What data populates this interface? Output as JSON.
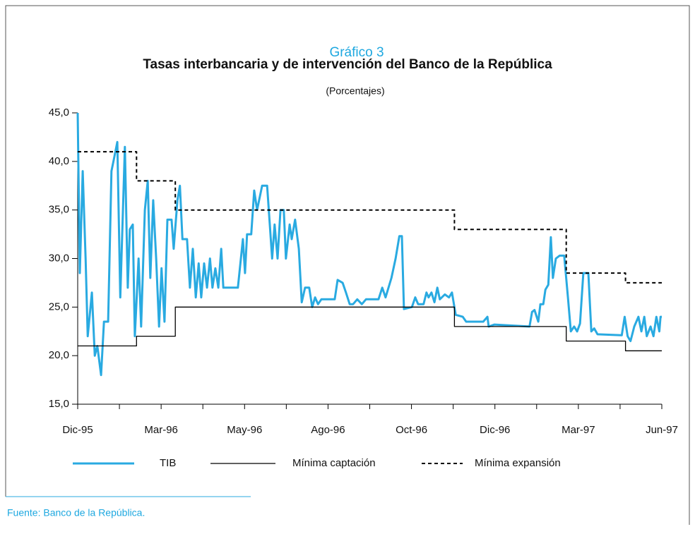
{
  "chart_data": {
    "type": "line",
    "title": "Gráfico 3",
    "subtitle": "Tasas interbancaria y de intervención del Banco de la República",
    "ylabel": "(Porcentajes)",
    "source": "Fuente: Banco de la República.",
    "xlim": [
      0,
      140
    ],
    "xticks": [
      {
        "value": 0,
        "label": "Dic-95"
      },
      {
        "value": 20,
        "label": "Mar-96"
      },
      {
        "value": 40,
        "label": "May-96"
      },
      {
        "value": 60,
        "label": "Ago-96"
      },
      {
        "value": 80,
        "label": "Oct-96"
      },
      {
        "value": 100,
        "label": "Dic-96"
      },
      {
        "value": 120,
        "label": "Mar-97"
      },
      {
        "value": 140,
        "label": "Jun-97"
      }
    ],
    "xminorticks": [
      10,
      30,
      50,
      70,
      90,
      110,
      130
    ],
    "ylim": [
      15,
      45
    ],
    "yticks": [
      {
        "value": 15,
        "label": "15,0"
      },
      {
        "value": 20,
        "label": "20,0"
      },
      {
        "value": 25,
        "label": "25,0"
      },
      {
        "value": 30,
        "label": "30,0"
      },
      {
        "value": 35,
        "label": "35,0"
      },
      {
        "value": 40,
        "label": "40,0"
      },
      {
        "value": 45,
        "label": "45,0"
      }
    ],
    "legend": "bottom",
    "series": [
      {
        "name": "TIB",
        "color": "#29aae1",
        "dash": "solid",
        "x": [
          0,
          0.5,
          1.2,
          1.9,
          2.4,
          3.4,
          4.1,
          4.7,
          5.6,
          6.3,
          7.3,
          8.1,
          8.8,
          9.5,
          10.2,
          11.3,
          12,
          12.5,
          13.2,
          13.7,
          14.6,
          15.2,
          16.1,
          16.8,
          17.4,
          18.1,
          18.8,
          19.5,
          20.1,
          20.8,
          21.5,
          22.5,
          23,
          23.9,
          24.5,
          25.1,
          26.2,
          26.9,
          27.6,
          28.3,
          29,
          29.6,
          30.3,
          31,
          31.7,
          32.3,
          33,
          33.7,
          34.4,
          34.9,
          35.9,
          37.1,
          38.4,
          39.6,
          40.1,
          40.6,
          41.6,
          42.3,
          43,
          44.2,
          45.4,
          46.6,
          47.2,
          47.9,
          48.6,
          49.4,
          49.9,
          50.8,
          51.3,
          52.1,
          53,
          53.7,
          54.5,
          55.5,
          56.2,
          56.9,
          57.6,
          58.4,
          61.6,
          62.3,
          63.5,
          64.3,
          65.2,
          66,
          67,
          68.1,
          69.1,
          72.1,
          73,
          73.8,
          75.2,
          76.2,
          77.1,
          77.7,
          78.2,
          80.1,
          80.9,
          81.6,
          82.9,
          83.6,
          84.1,
          84.8,
          85.5,
          86.2,
          86.8,
          88,
          89,
          89.7,
          90.6,
          92.3,
          93.1,
          97.2,
          98.2,
          98.5,
          99.9,
          108.3,
          108.9,
          109.5,
          110.4,
          110.9,
          111.6,
          112.1,
          112.8,
          113.4,
          113.9,
          114.6,
          115.5,
          116.6,
          117.5,
          118.2,
          119,
          119.7,
          120.4,
          121.2,
          122.4,
          123.1,
          123.8,
          124.6,
          130.4,
          131.1,
          131.8,
          132.5,
          133.4,
          134.4,
          135.1,
          135.8,
          136.4,
          137.3,
          138,
          138.7,
          139.4,
          139.7,
          140
        ],
        "values": [
          45,
          28.5,
          39,
          30,
          22,
          26.5,
          20,
          21,
          18,
          23.5,
          23.5,
          39,
          40.5,
          42,
          26,
          41.5,
          27,
          33,
          33.5,
          22,
          30,
          23,
          35,
          38,
          28,
          36,
          30,
          23,
          29,
          23.5,
          34,
          34,
          31,
          36,
          37.5,
          32,
          32,
          27,
          31,
          26,
          29.5,
          26,
          29.5,
          27,
          30,
          27,
          29,
          27,
          31,
          27,
          27,
          27,
          27,
          32,
          28.5,
          32.5,
          32.5,
          37,
          35,
          37.5,
          37.5,
          30,
          33.5,
          30,
          35,
          35,
          30,
          33.5,
          32,
          34,
          31,
          25.5,
          27,
          27,
          25,
          26,
          25.3,
          25.8,
          25.8,
          27.8,
          27.5,
          26.5,
          25.3,
          25.3,
          25.8,
          25.3,
          25.8,
          25.8,
          27,
          26,
          28,
          30,
          32.3,
          32.3,
          24.8,
          25,
          26,
          25.3,
          25.3,
          26.5,
          26,
          26.5,
          25.5,
          27,
          25.8,
          26.3,
          26,
          26.5,
          24.2,
          24,
          23.5,
          23.5,
          24,
          23,
          23.2,
          23,
          24.5,
          24.7,
          23.5,
          25.3,
          25.3,
          26.8,
          27.3,
          32.2,
          28,
          30,
          30.3,
          30.3,
          26,
          22.5,
          23,
          22.5,
          23.3,
          28.5,
          28.5,
          22.5,
          22.8,
          22.2,
          22.1,
          24,
          22,
          21.5,
          23,
          24,
          22.5,
          24,
          22,
          23,
          22,
          24,
          22.5,
          24,
          24
        ]
      },
      {
        "name": "Mínima captación",
        "color": "#000000",
        "dash": "solid",
        "x": [
          0,
          14.1,
          14.1,
          23.4,
          23.4,
          90.3,
          90.3,
          117.1,
          117.1,
          131.3,
          131.3,
          140
        ],
        "values": [
          21,
          21,
          22,
          22,
          25,
          25,
          23,
          23,
          21.5,
          21.5,
          20.5,
          20.5
        ]
      },
      {
        "name": "Mínima expansión",
        "color": "#000000",
        "dash": "dashed",
        "x": [
          0,
          14.1,
          14.1,
          23.4,
          23.4,
          90.3,
          90.3,
          117.1,
          117.1,
          131.3,
          131.3,
          140
        ],
        "values": [
          41,
          41,
          38,
          38,
          35,
          35,
          33,
          33,
          28.5,
          28.5,
          27.5,
          27.5
        ]
      }
    ]
  }
}
